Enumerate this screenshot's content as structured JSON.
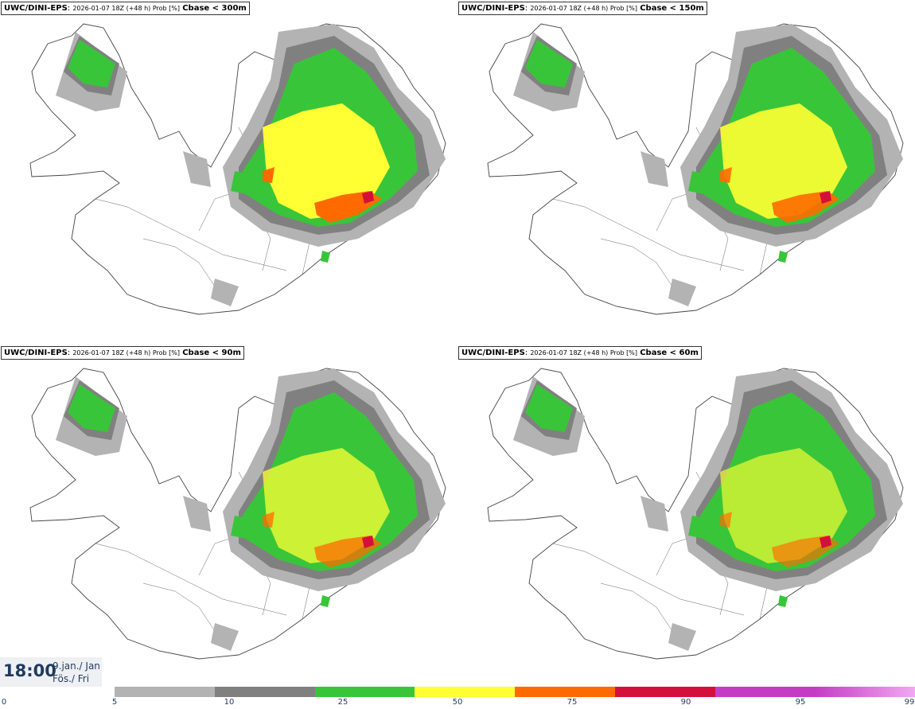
{
  "panels": [
    {
      "model": "UWC/DINI-EPS",
      "meta": "2026-01-07 18Z (+48 h) Prob [%]",
      "param": "Cbase < 300m"
    },
    {
      "model": "UWC/DINI-EPS",
      "meta": "2026-01-07 18Z (+48 h) Prob [%]",
      "param": "Cbase < 150m"
    },
    {
      "model": "UWC/DINI-EPS",
      "meta": "2026-01-07 18Z (+48 h) Prob [%]",
      "param": "Cbase < 90m"
    },
    {
      "model": "UWC/DINI-EPS",
      "meta": "2026-01-07 18Z (+48 h) Prob [%]",
      "param": "Cbase < 60m"
    }
  ],
  "valid_time": {
    "clock": "18:00",
    "date_line1": "9.jan./ Jan",
    "date_line2": "Fös./ Fri"
  },
  "legend": {
    "ticks": [
      "0",
      "5",
      "10",
      "25",
      "50",
      "75",
      "90",
      "95",
      "99"
    ],
    "colors": [
      "#b3b3b3",
      "#808080",
      "#39c539",
      "#ffff33",
      "#ff6a00",
      "#d40f3c",
      "#c43cc4",
      "#f2a8f2"
    ]
  },
  "map_colors": {
    "land_outline": "#444444",
    "shade5": "#b3b3b3",
    "shade10": "#808080",
    "shade25": "#39c539",
    "shade50": "#ffff33",
    "shade75": "#ff6a00",
    "shade90": "#d40f3c"
  }
}
